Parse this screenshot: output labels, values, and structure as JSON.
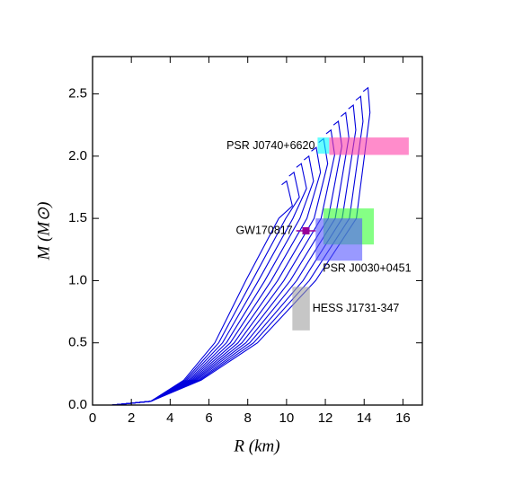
{
  "chart_data": {
    "type": "line",
    "xlabel": "R (km)",
    "ylabel": "M (M⊙)",
    "xlim": [
      0,
      17
    ],
    "ylim": [
      0,
      2.8
    ],
    "xticks": [
      0,
      2,
      4,
      6,
      8,
      10,
      12,
      14,
      16
    ],
    "yticks": [
      {
        "value": 0,
        "label": "0.0"
      },
      {
        "value": 0.5,
        "label": "0.5"
      },
      {
        "value": 1,
        "label": "1.0"
      },
      {
        "value": 1.5,
        "label": "1.5"
      },
      {
        "value": 2,
        "label": "2.0"
      },
      {
        "value": 2.5,
        "label": "2.5"
      }
    ],
    "color": "#0000dd",
    "series": [
      {
        "x": [
          1,
          3,
          4.7,
          6.3,
          7.9,
          9.6,
          10.3,
          10.0,
          9.75
        ],
        "values": [
          0,
          0.03,
          0.2,
          0.5,
          1,
          1.5,
          1.6,
          1.8,
          1.77
        ]
      },
      {
        "x": [
          1,
          3,
          4.78,
          6.5,
          8.23,
          9.96,
          10.66,
          10.38,
          10.13
        ],
        "values": [
          0,
          0.03,
          0.2,
          0.5,
          1,
          1.5,
          1.67,
          1.87,
          1.84
        ]
      },
      {
        "x": [
          1,
          3,
          4.86,
          6.7,
          8.55,
          10.33,
          11.03,
          10.76,
          10.51
        ],
        "values": [
          0,
          0.03,
          0.2,
          0.5,
          1,
          1.5,
          1.74,
          1.94,
          1.91
        ]
      },
      {
        "x": [
          1,
          3,
          4.95,
          6.9,
          8.88,
          10.69,
          11.39,
          11.15,
          10.9
        ],
        "values": [
          0,
          0.03,
          0.2,
          0.5,
          1,
          1.5,
          1.8,
          2.0,
          1.97
        ]
      },
      {
        "x": [
          1,
          3,
          5.03,
          7.1,
          9.21,
          11.05,
          11.75,
          11.53,
          11.28
        ],
        "values": [
          0,
          0.03,
          0.2,
          0.5,
          1,
          1.5,
          1.87,
          2.07,
          2.04
        ]
      },
      {
        "x": [
          1,
          3,
          5.11,
          7.3,
          9.54,
          11.42,
          12.12,
          11.91,
          11.66
        ],
        "values": [
          0,
          0.03,
          0.2,
          0.5,
          1,
          1.5,
          1.94,
          2.14,
          2.11
        ]
      },
      {
        "x": [
          1,
          3,
          5.19,
          7.5,
          9.86,
          11.78,
          12.48,
          12.29,
          12.04
        ],
        "values": [
          0,
          0.03,
          0.2,
          0.5,
          1,
          1.5,
          2.01,
          2.21,
          2.18
        ]
      },
      {
        "x": [
          1,
          3,
          5.27,
          7.7,
          10.19,
          12.15,
          12.85,
          12.67,
          12.42
        ],
        "values": [
          0,
          0.03,
          0.2,
          0.5,
          1,
          1.5,
          2.08,
          2.28,
          2.25
        ]
      },
      {
        "x": [
          1,
          3,
          5.35,
          7.9,
          10.52,
          12.51,
          13.21,
          13.05,
          12.8
        ],
        "values": [
          0,
          0.03,
          0.2,
          0.5,
          1,
          1.5,
          2.15,
          2.35,
          2.32
        ]
      },
      {
        "x": [
          1,
          3,
          5.44,
          8.1,
          10.85,
          12.87,
          13.57,
          13.44,
          13.19
        ],
        "values": [
          0,
          0.03,
          0.2,
          0.5,
          1,
          1.5,
          2.21,
          2.41,
          2.38
        ]
      },
      {
        "x": [
          1,
          3,
          5.52,
          8.3,
          11.17,
          13.24,
          13.94,
          13.82,
          13.57
        ],
        "values": [
          0,
          0.03,
          0.2,
          0.5,
          1,
          1.5,
          2.28,
          2.48,
          2.45
        ]
      },
      {
        "x": [
          1,
          3,
          5.6,
          8.5,
          11.5,
          13.6,
          14.3,
          14.2,
          13.95
        ],
        "values": [
          0,
          0.03,
          0.2,
          0.5,
          1,
          1.5,
          2.35,
          2.55,
          2.52
        ]
      }
    ],
    "regions": [
      {
        "label": "PSR J0740+6620",
        "label_position": "left",
        "boxes": [
          {
            "x": [
              11.6,
              12.2
            ],
            "y": [
              2.02,
              2.15
            ],
            "color": "#00ffff"
          },
          {
            "x": [
              12.2,
              16.3
            ],
            "y": [
              2.01,
              2.15
            ],
            "color": "#ff3fa8"
          }
        ]
      },
      {
        "label": "PSR J0030+0451",
        "label_position": "below",
        "boxes": [
          {
            "x": [
              11.9,
              14.5
            ],
            "y": [
              1.29,
              1.58
            ],
            "color": "#33ff33"
          },
          {
            "x": [
              11.5,
              13.9
            ],
            "y": [
              1.16,
              1.5
            ],
            "color": "#5555ff"
          }
        ]
      },
      {
        "label": "HESS J1731-347",
        "label_position": "right",
        "boxes": [
          {
            "x": [
              10.3,
              11.2
            ],
            "y": [
              0.6,
              0.95
            ],
            "color": "#a0a0a0"
          }
        ]
      }
    ],
    "points": [
      {
        "label": "GW170817",
        "label_position": "left",
        "x": 11.0,
        "y": 1.4,
        "xerr": 0.5,
        "color": "#990099"
      }
    ]
  }
}
